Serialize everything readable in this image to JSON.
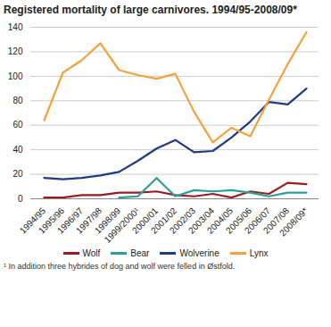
{
  "chart_data": {
    "type": "line",
    "title": "Registered mortality of large carnivores. 1994/95-2008/09*",
    "categories": [
      "1994/95",
      "1995/96",
      "1996/97",
      "1997/98",
      "1998/99",
      "1999/2000¹",
      "2000/01",
      "2001/02",
      "2002/03",
      "2003/04",
      "2004/05",
      "2005/06",
      "2006/07",
      "2007/08",
      "2008/09*"
    ],
    "series": [
      {
        "name": "Wolf",
        "color": "#9b1c20",
        "values": [
          1,
          1,
          3,
          3,
          5,
          5,
          6,
          3,
          2,
          4,
          1,
          6,
          4,
          13,
          12
        ]
      },
      {
        "name": "Bear",
        "color": "#2a9d9c",
        "values": [
          null,
          null,
          null,
          null,
          1,
          2,
          17,
          2,
          7,
          6,
          7,
          5,
          2,
          5,
          5
        ]
      },
      {
        "name": "Wolverine",
        "color": "#1f3a87",
        "values": [
          17,
          16,
          17,
          19,
          22,
          31,
          41,
          48,
          38,
          39,
          50,
          63,
          79,
          77,
          90
        ]
      },
      {
        "name": "Lynx",
        "color": "#f4a23c",
        "values": [
          64,
          103,
          113,
          127,
          105,
          101,
          98,
          102,
          71,
          46,
          58,
          51,
          81,
          110,
          136
        ]
      }
    ],
    "ylim": [
      0,
      140
    ],
    "yticks": [
      0,
      20,
      40,
      60,
      80,
      100,
      120,
      140
    ],
    "grid": true,
    "legend": "bottom",
    "footnote": "¹ In addition three hybrides of dog and wolf were felled in Østfold."
  }
}
